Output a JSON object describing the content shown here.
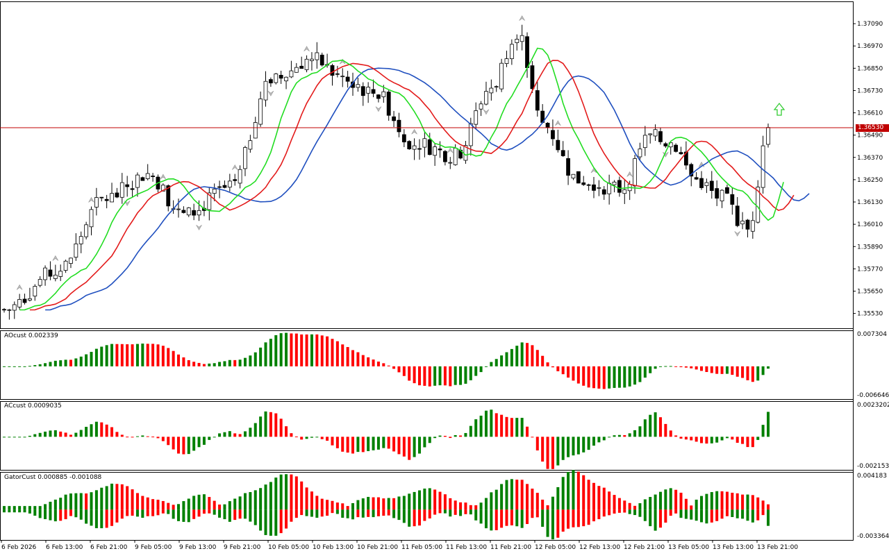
{
  "chart_data": {
    "type": "candlestick",
    "symbol_price_current": 1.3653,
    "current_price_label": "1.36530",
    "main": {
      "y_ticks": [
        "1.37090",
        "1.36970",
        "1.36850",
        "1.36730",
        "1.36610",
        "1.36490",
        "1.36370",
        "1.36250",
        "1.36130",
        "1.36010",
        "1.35890",
        "1.35770",
        "1.35650",
        "1.35530"
      ],
      "ylim": [
        1.3545,
        1.3721
      ],
      "lines": [
        {
          "name": "blue",
          "color": "#1f4fbf"
        },
        {
          "name": "red",
          "color": "#e31b1b"
        },
        {
          "name": "green",
          "color": "#22dd22"
        }
      ]
    },
    "x_labels": [
      "6 Feb 2026",
      "6 Feb 13:00",
      "6 Feb 21:00",
      "9 Feb 05:00",
      "9 Feb 13:00",
      "9 Feb 21:00",
      "10 Feb 05:00",
      "10 Feb 13:00",
      "10 Feb 21:00",
      "11 Feb 05:00",
      "11 Feb 13:00",
      "11 Feb 21:00",
      "12 Feb 05:00",
      "12 Feb 13:00",
      "12 Feb 21:00",
      "13 Feb 05:00",
      "13 Feb 13:00",
      "13 Feb 21:00"
    ],
    "indicators": [
      {
        "name": "AOcust",
        "label": "AOcust 0.002339",
        "value": 0.002339,
        "top_tick": "0.007304",
        "bottom_tick": "-0.006646",
        "ylim": [
          -0.006646,
          0.007304
        ]
      },
      {
        "name": "ACcust",
        "label": "ACcust 0.0009035",
        "value": 0.0009035,
        "top_tick": "0.0023202",
        "bottom_tick": "-0.0021530",
        "ylim": [
          -0.002153,
          0.0023202
        ]
      },
      {
        "name": "GatorCust",
        "label": "GatorCust 0.000885 -0.001088",
        "values": [
          0.000885,
          -0.001088
        ],
        "top_tick": "0.004183",
        "bottom_tick": "-0.003364",
        "ylim": [
          -0.003364,
          0.004183
        ]
      }
    ],
    "colors": {
      "up": "#008000",
      "down": "#ff0000",
      "price_line": "#c00000",
      "candle_bull": "#ffffff",
      "candle_bear": "#000000",
      "arrow": "#33cc33"
    }
  }
}
